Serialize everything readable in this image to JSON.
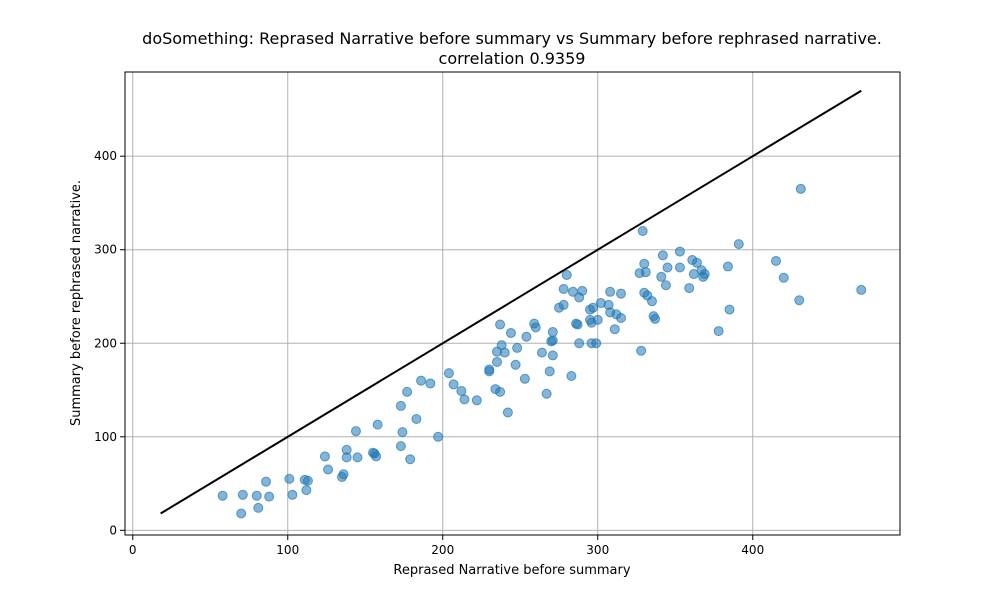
{
  "chart_data": {
    "type": "scatter",
    "title": "doSomething: Reprased Narrative before summary vs Summary before rephrased narrative.",
    "subtitle": "correlation 0.9359",
    "xlabel": "Reprased Narrative before summary",
    "ylabel": "Summary before rephrased narrative.",
    "xlim": [
      -5,
      495
    ],
    "ylim": [
      -5,
      490
    ],
    "xticks": [
      0,
      100,
      200,
      300,
      400
    ],
    "yticks": [
      0,
      100,
      200,
      300,
      400
    ],
    "grid": true,
    "point_color": "#1f77b4",
    "line_color": "#000000",
    "reference_line": {
      "x": [
        18,
        470
      ],
      "y": [
        18,
        470
      ]
    },
    "series": [
      {
        "points": [
          [
            58,
            37
          ],
          [
            70,
            18
          ],
          [
            71,
            38
          ],
          [
            80,
            37
          ],
          [
            81,
            24
          ],
          [
            86,
            52
          ],
          [
            88,
            36
          ],
          [
            101,
            55
          ],
          [
            103,
            38
          ],
          [
            111,
            54
          ],
          [
            112,
            43
          ],
          [
            113,
            53
          ],
          [
            124,
            79
          ],
          [
            126,
            65
          ],
          [
            135,
            57
          ],
          [
            136,
            60
          ],
          [
            138,
            86
          ],
          [
            138,
            78
          ],
          [
            144,
            106
          ],
          [
            145,
            78
          ],
          [
            155,
            83
          ],
          [
            156,
            82
          ],
          [
            157,
            79
          ],
          [
            158,
            113
          ],
          [
            173,
            133
          ],
          [
            173,
            90
          ],
          [
            174,
            105
          ],
          [
            177,
            148
          ],
          [
            179,
            76
          ],
          [
            183,
            119
          ],
          [
            186,
            160
          ],
          [
            192,
            157
          ],
          [
            197,
            100
          ],
          [
            204,
            168
          ],
          [
            207,
            156
          ],
          [
            212,
            149
          ],
          [
            214,
            140
          ],
          [
            222,
            139
          ],
          [
            230,
            170
          ],
          [
            230,
            172
          ],
          [
            234,
            151
          ],
          [
            235,
            180
          ],
          [
            235,
            191
          ],
          [
            237,
            148
          ],
          [
            237,
            220
          ],
          [
            238,
            198
          ],
          [
            240,
            190
          ],
          [
            242,
            126
          ],
          [
            244,
            211
          ],
          [
            247,
            177
          ],
          [
            248,
            195
          ],
          [
            253,
            162
          ],
          [
            254,
            207
          ],
          [
            259,
            221
          ],
          [
            260,
            217
          ],
          [
            264,
            190
          ],
          [
            267,
            146
          ],
          [
            269,
            170
          ],
          [
            270,
            202
          ],
          [
            271,
            212
          ],
          [
            271,
            187
          ],
          [
            271,
            203
          ],
          [
            275,
            238
          ],
          [
            278,
            241
          ],
          [
            278,
            258
          ],
          [
            280,
            273
          ],
          [
            283,
            165
          ],
          [
            284,
            255
          ],
          [
            286,
            221
          ],
          [
            287,
            220
          ],
          [
            288,
            200
          ],
          [
            288,
            249
          ],
          [
            290,
            256
          ],
          [
            295,
            225
          ],
          [
            295,
            236
          ],
          [
            296,
            200
          ],
          [
            296,
            222
          ],
          [
            297,
            238
          ],
          [
            299,
            200
          ],
          [
            300,
            225
          ],
          [
            302,
            243
          ],
          [
            307,
            241
          ],
          [
            308,
            233
          ],
          [
            308,
            255
          ],
          [
            311,
            215
          ],
          [
            312,
            231
          ],
          [
            315,
            227
          ],
          [
            315,
            253
          ],
          [
            327,
            275
          ],
          [
            328,
            192
          ],
          [
            329,
            320
          ],
          [
            330,
            254
          ],
          [
            330,
            285
          ],
          [
            331,
            276
          ],
          [
            332,
            251
          ],
          [
            335,
            245
          ],
          [
            336,
            229
          ],
          [
            337,
            226
          ],
          [
            341,
            271
          ],
          [
            342,
            294
          ],
          [
            344,
            262
          ],
          [
            345,
            281
          ],
          [
            353,
            298
          ],
          [
            353,
            281
          ],
          [
            359,
            259
          ],
          [
            361,
            289
          ],
          [
            362,
            274
          ],
          [
            364,
            286
          ],
          [
            367,
            278
          ],
          [
            368,
            271
          ],
          [
            369,
            274
          ],
          [
            378,
            213
          ],
          [
            384,
            282
          ],
          [
            385,
            236
          ],
          [
            391,
            306
          ],
          [
            415,
            288
          ],
          [
            420,
            270
          ],
          [
            430,
            246
          ],
          [
            431,
            365
          ],
          [
            470,
            257
          ]
        ]
      }
    ]
  }
}
